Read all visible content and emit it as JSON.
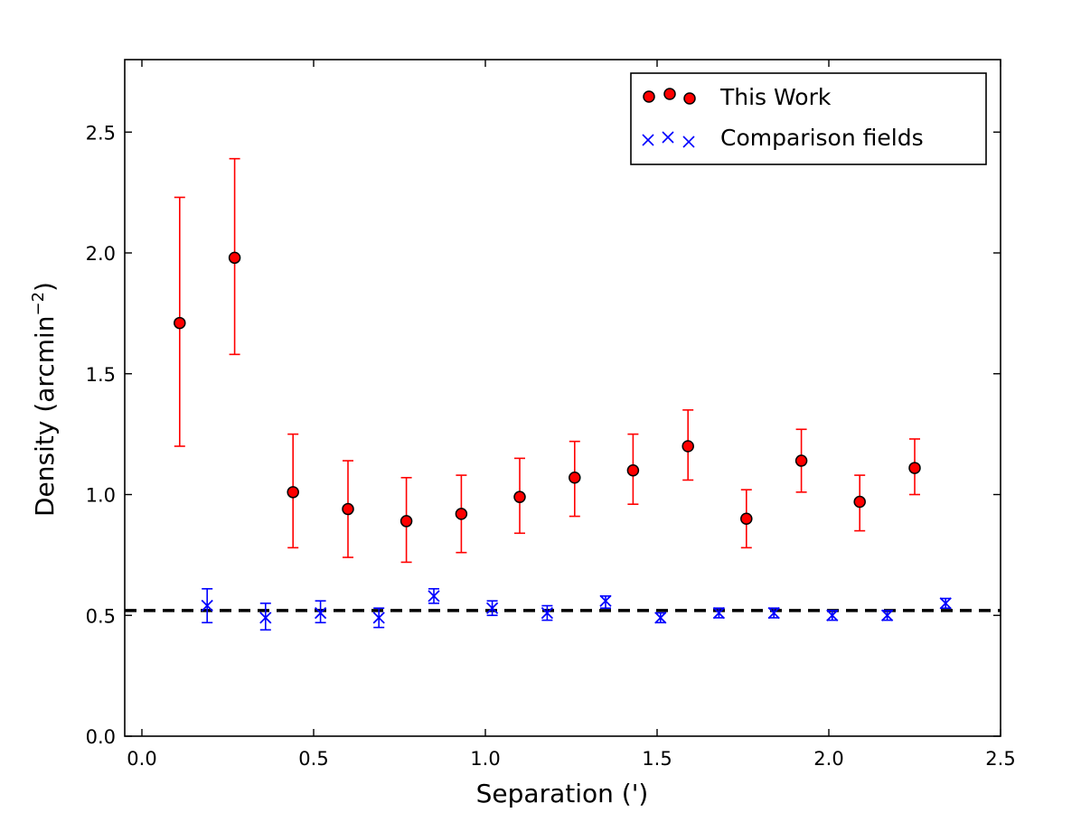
{
  "chart_data": {
    "type": "scatter",
    "title": "",
    "xlabel": "Separation (')",
    "ylabel_main": "Density (arcmin",
    "ylabel_sup": "−2",
    "ylabel_close": ")",
    "xlim": [
      -0.05,
      2.5
    ],
    "ylim": [
      0.0,
      2.8
    ],
    "xticks": [
      0.0,
      0.5,
      1.0,
      1.5,
      2.0,
      2.5
    ],
    "xtick_labels": [
      "0.0",
      "0.5",
      "1.0",
      "1.5",
      "2.0",
      "2.5"
    ],
    "yticks": [
      0.0,
      0.5,
      1.0,
      1.5,
      2.0,
      2.5
    ],
    "ytick_labels": [
      "0.0",
      "0.5",
      "1.0",
      "1.5",
      "2.0",
      "2.5"
    ],
    "grid": false,
    "legend_position": "top-right",
    "reference_line": {
      "y": 0.52,
      "style": "dashed",
      "color": "#000000"
    },
    "series": [
      {
        "name": "This Work",
        "marker": "circle",
        "color": "#ff0000",
        "edge_color": "#000000",
        "points": [
          {
            "x": 0.11,
            "y": 1.71,
            "ylo": 1.2,
            "yhi": 2.23
          },
          {
            "x": 0.27,
            "y": 1.98,
            "ylo": 1.58,
            "yhi": 2.39
          },
          {
            "x": 0.44,
            "y": 1.01,
            "ylo": 0.78,
            "yhi": 1.25
          },
          {
            "x": 0.6,
            "y": 0.94,
            "ylo": 0.74,
            "yhi": 1.14
          },
          {
            "x": 0.77,
            "y": 0.89,
            "ylo": 0.72,
            "yhi": 1.07
          },
          {
            "x": 0.93,
            "y": 0.92,
            "ylo": 0.76,
            "yhi": 1.08
          },
          {
            "x": 1.1,
            "y": 0.99,
            "ylo": 0.84,
            "yhi": 1.15
          },
          {
            "x": 1.26,
            "y": 1.07,
            "ylo": 0.91,
            "yhi": 1.22
          },
          {
            "x": 1.43,
            "y": 1.1,
            "ylo": 0.96,
            "yhi": 1.25
          },
          {
            "x": 1.59,
            "y": 1.2,
            "ylo": 1.06,
            "yhi": 1.35
          },
          {
            "x": 1.76,
            "y": 0.9,
            "ylo": 0.78,
            "yhi": 1.02
          },
          {
            "x": 1.92,
            "y": 1.14,
            "ylo": 1.01,
            "yhi": 1.27
          },
          {
            "x": 2.09,
            "y": 0.97,
            "ylo": 0.85,
            "yhi": 1.08
          },
          {
            "x": 2.25,
            "y": 1.11,
            "ylo": 1.0,
            "yhi": 1.23
          }
        ]
      },
      {
        "name": "Comparison fields",
        "marker": "x",
        "color": "#0000ff",
        "points": [
          {
            "x": 0.19,
            "y": 0.54,
            "ylo": 0.47,
            "yhi": 0.61
          },
          {
            "x": 0.36,
            "y": 0.49,
            "ylo": 0.44,
            "yhi": 0.55
          },
          {
            "x": 0.52,
            "y": 0.51,
            "ylo": 0.47,
            "yhi": 0.56
          },
          {
            "x": 0.69,
            "y": 0.49,
            "ylo": 0.45,
            "yhi": 0.53
          },
          {
            "x": 0.85,
            "y": 0.58,
            "ylo": 0.55,
            "yhi": 0.61
          },
          {
            "x": 1.02,
            "y": 0.53,
            "ylo": 0.5,
            "yhi": 0.56
          },
          {
            "x": 1.18,
            "y": 0.51,
            "ylo": 0.48,
            "yhi": 0.54
          },
          {
            "x": 1.35,
            "y": 0.56,
            "ylo": 0.53,
            "yhi": 0.58
          },
          {
            "x": 1.51,
            "y": 0.49,
            "ylo": 0.47,
            "yhi": 0.51
          },
          {
            "x": 1.68,
            "y": 0.51,
            "ylo": 0.49,
            "yhi": 0.53
          },
          {
            "x": 1.84,
            "y": 0.51,
            "ylo": 0.49,
            "yhi": 0.53
          },
          {
            "x": 2.01,
            "y": 0.5,
            "ylo": 0.48,
            "yhi": 0.52
          },
          {
            "x": 2.17,
            "y": 0.5,
            "ylo": 0.48,
            "yhi": 0.52
          },
          {
            "x": 2.34,
            "y": 0.55,
            "ylo": 0.53,
            "yhi": 0.57
          }
        ]
      }
    ]
  }
}
